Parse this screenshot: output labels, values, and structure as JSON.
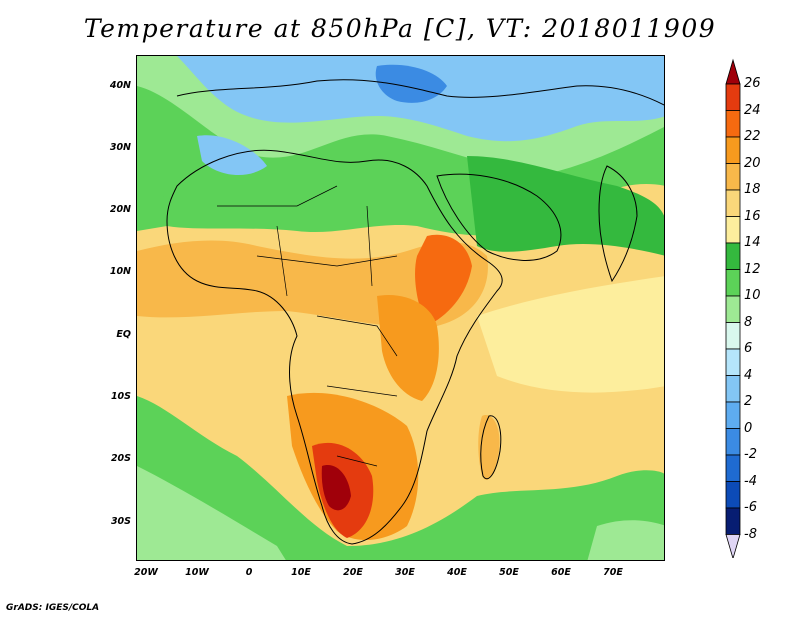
{
  "title": "Temperature at 850hPa [C], VT: 2018011909",
  "credit": "GrADS: IGES/COLA",
  "lat_labels": [
    "40N",
    "30N",
    "20N",
    "10N",
    "EQ",
    "10S",
    "20S",
    "30S"
  ],
  "lon_labels": [
    "20W",
    "10W",
    "0",
    "10E",
    "20E",
    "30E",
    "40E",
    "50E",
    "60E",
    "70E"
  ],
  "colorbar": {
    "labels": [
      "26",
      "24",
      "22",
      "20",
      "18",
      "16",
      "14",
      "12",
      "10",
      "8",
      "6",
      "4",
      "2",
      "0",
      "-2",
      "-4",
      "-6",
      "-8"
    ],
    "colors": [
      "#a0000a",
      "#e43b0f",
      "#f66a10",
      "#f79a1e",
      "#f8b84a",
      "#fad77a",
      "#fdee9d",
      "#34b93e",
      "#5cd258",
      "#9ee994",
      "#d9f8ee",
      "#b5e5fb",
      "#83c6f5",
      "#5eacf0",
      "#3b8be3",
      "#1f6bd1",
      "#0c4bb7",
      "#071d72",
      "#e0d6f5"
    ]
  }
}
